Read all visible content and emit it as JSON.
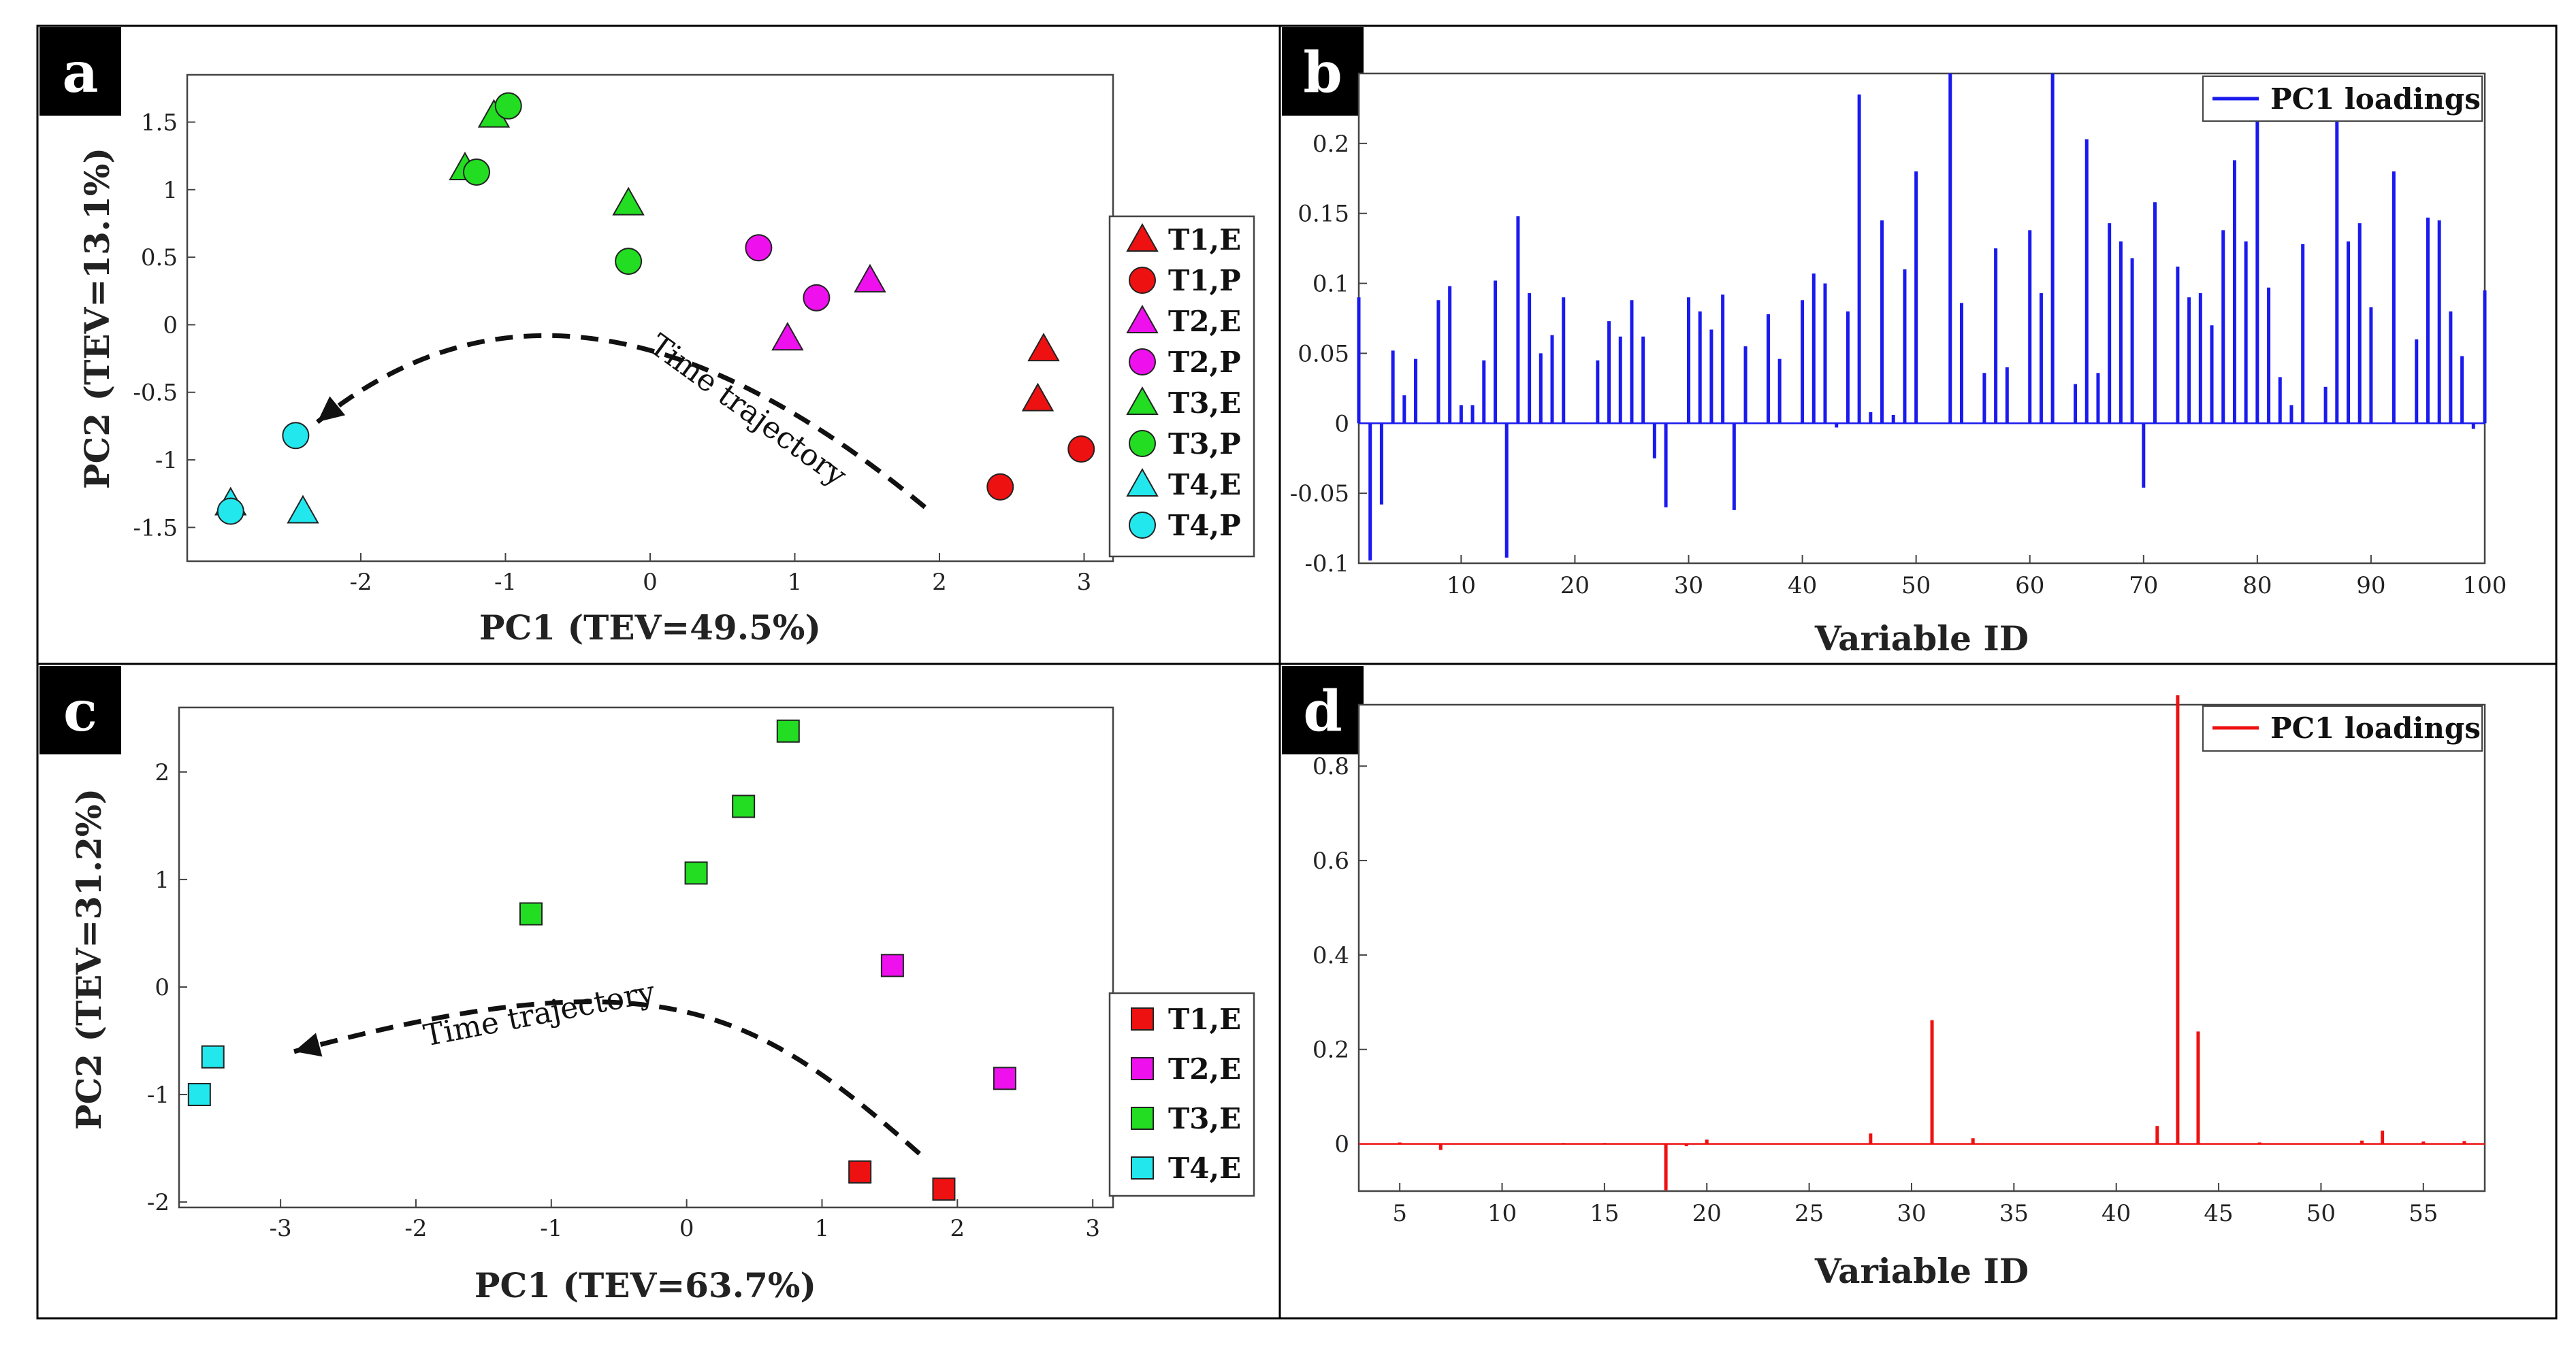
{
  "chart_data": [
    {
      "panel": "a",
      "type": "scatter",
      "xlabel": "PC1 (TEV=49.5%)",
      "ylabel": "PC2 (TEV=13.1%)",
      "xlim": [
        -3.2,
        3.2
      ],
      "ylim": [
        -1.75,
        1.85
      ],
      "xticks": [
        -2,
        -1,
        0,
        1,
        2,
        3
      ],
      "yticks": [
        -1.5,
        -1,
        -0.5,
        0,
        0.5,
        1,
        1.5
      ],
      "ytick_labels": [
        "-1.5",
        "-1",
        "-0.5",
        "0",
        "0.5",
        "1",
        "1.5"
      ],
      "annotation": "Time trajectory",
      "trajectory": [
        [
          1.9,
          -1.35
        ],
        [
          0.6,
          -0.2
        ],
        [
          -0.9,
          0.5
        ],
        [
          -2.3,
          -0.72
        ]
      ],
      "legend_position": "right",
      "series": [
        {
          "name": "T1,E",
          "marker": "triangle",
          "color": "#ee1111",
          "points": [
            [
              2.72,
              -0.18
            ],
            [
              2.68,
              -0.55
            ]
          ]
        },
        {
          "name": "T1,P",
          "marker": "circle",
          "color": "#ee1111",
          "points": [
            [
              2.42,
              -1.2
            ],
            [
              2.98,
              -0.92
            ]
          ]
        },
        {
          "name": "T2,E",
          "marker": "triangle",
          "color": "#ee11ee",
          "points": [
            [
              0.95,
              -0.1
            ],
            [
              1.52,
              0.33
            ]
          ]
        },
        {
          "name": "T2,P",
          "marker": "circle",
          "color": "#ee11ee",
          "points": [
            [
              0.75,
              0.57
            ],
            [
              1.15,
              0.2
            ]
          ]
        },
        {
          "name": "T3,E",
          "marker": "triangle",
          "color": "#22dd22",
          "points": [
            [
              -1.08,
              1.55
            ],
            [
              -1.28,
              1.16
            ],
            [
              -0.15,
              0.9
            ]
          ]
        },
        {
          "name": "T3,P",
          "marker": "circle",
          "color": "#22dd22",
          "points": [
            [
              -0.98,
              1.62
            ],
            [
              -1.2,
              1.13
            ],
            [
              -0.15,
              0.47
            ]
          ]
        },
        {
          "name": "T4,E",
          "marker": "triangle",
          "color": "#22e8ee",
          "points": [
            [
              -2.9,
              -1.32
            ],
            [
              -2.4,
              -1.38
            ]
          ]
        },
        {
          "name": "T4,P",
          "marker": "circle",
          "color": "#22e8ee",
          "points": [
            [
              -2.45,
              -0.82
            ],
            [
              -2.9,
              -1.38
            ]
          ]
        }
      ]
    },
    {
      "panel": "b",
      "type": "bar",
      "xlabel": "Variable ID",
      "ylabel": "",
      "xlim": [
        1,
        100
      ],
      "ylim": [
        -0.1,
        0.25
      ],
      "xticks": [
        10,
        20,
        30,
        40,
        50,
        60,
        70,
        80,
        90,
        100
      ],
      "yticks": [
        -0.1,
        -0.05,
        0,
        0.05,
        0.1,
        0.15,
        0.2
      ],
      "ytick_labels": [
        "-0.1",
        "-0.05",
        "0",
        "0.05",
        "0.1",
        "0.15",
        "0.2"
      ],
      "legend": "PC1 loadings",
      "legend_position": "top-right",
      "color": "#1a1aee",
      "x": [
        1,
        2,
        3,
        4,
        5,
        6,
        7,
        8,
        9,
        10,
        11,
        12,
        13,
        14,
        15,
        16,
        17,
        18,
        19,
        20,
        21,
        22,
        23,
        24,
        25,
        26,
        27,
        28,
        29,
        30,
        31,
        32,
        33,
        34,
        35,
        36,
        37,
        38,
        39,
        40,
        41,
        42,
        43,
        44,
        45,
        46,
        47,
        48,
        49,
        50,
        51,
        52,
        53,
        54,
        55,
        56,
        57,
        58,
        59,
        60,
        61,
        62,
        63,
        64,
        65,
        66,
        67,
        68,
        69,
        70,
        71,
        72,
        73,
        74,
        75,
        76,
        77,
        78,
        79,
        80,
        81,
        82,
        83,
        84,
        85,
        86,
        87,
        88,
        89,
        90,
        91,
        92,
        93,
        94,
        95,
        96,
        97,
        98,
        99,
        100
      ],
      "values": [
        0.09,
        -0.098,
        -0.058,
        0.052,
        0.02,
        0.046,
        0,
        0.088,
        0.098,
        0.013,
        0.013,
        0.045,
        0.102,
        -0.096,
        0.148,
        0.093,
        0.05,
        0.063,
        0.09,
        0,
        0,
        0.045,
        0.073,
        0.062,
        0.088,
        0.062,
        -0.025,
        -0.06,
        0,
        0.09,
        0.08,
        0.067,
        0.092,
        -0.062,
        0.055,
        0,
        0.078,
        0.046,
        0,
        0.088,
        0.107,
        0.1,
        -0.003,
        0.08,
        0.235,
        0.008,
        0.145,
        0.006,
        0.11,
        0.18,
        0,
        0,
        0.25,
        0.086,
        0,
        0.036,
        0.125,
        0.04,
        0,
        0.138,
        0.093,
        0.25,
        0,
        0.028,
        0.203,
        0.036,
        0.143,
        0.13,
        0.118,
        -0.046,
        0.158,
        0,
        0.112,
        0.09,
        0.093,
        0.07,
        0.138,
        0.188,
        0.13,
        0.22,
        0.097,
        0.033,
        0.013,
        0.128,
        0,
        0.026,
        0.235,
        0.13,
        0.143,
        0.083,
        0,
        0.18,
        0,
        0.06,
        0.147,
        0.145,
        0.08,
        0.048,
        -0.004,
        0.095
      ]
    },
    {
      "panel": "c",
      "type": "scatter",
      "xlabel": "PC1 (TEV=63.7%)",
      "ylabel": "PC2 (TEV=31.2%)",
      "xlim": [
        -3.75,
        3.15
      ],
      "ylim": [
        -2.05,
        2.6
      ],
      "xticks": [
        -3,
        -2,
        -1,
        0,
        1,
        2,
        3
      ],
      "yticks": [
        -2,
        -1,
        0,
        1,
        2
      ],
      "annotation": "Time trajectory",
      "trajectory": [
        [
          1.72,
          -1.55
        ],
        [
          0.5,
          -0.2
        ],
        [
          -0.2,
          0.32
        ],
        [
          -2.9,
          -0.6
        ]
      ],
      "legend_position": "bottom-right",
      "series": [
        {
          "name": "T1,E",
          "marker": "square",
          "color": "#ee1111",
          "points": [
            [
              1.28,
              -1.72
            ],
            [
              1.9,
              -1.88
            ]
          ]
        },
        {
          "name": "T2,E",
          "marker": "square",
          "color": "#ee11ee",
          "points": [
            [
              1.52,
              0.2
            ],
            [
              2.35,
              -0.85
            ]
          ]
        },
        {
          "name": "T3,E",
          "marker": "square",
          "color": "#22dd22",
          "points": [
            [
              0.75,
              2.38
            ],
            [
              0.42,
              1.68
            ],
            [
              0.07,
              1.06
            ],
            [
              -1.15,
              0.68
            ]
          ]
        },
        {
          "name": "T4,E",
          "marker": "square",
          "color": "#22e8ee",
          "points": [
            [
              -3.5,
              -0.65
            ],
            [
              -3.6,
              -1.0
            ]
          ]
        }
      ]
    },
    {
      "panel": "d",
      "type": "bar",
      "xlabel": "Variable ID",
      "ylabel": "",
      "xlim": [
        3,
        58
      ],
      "ylim": [
        -0.1,
        0.93
      ],
      "xticks": [
        5,
        10,
        15,
        20,
        25,
        30,
        35,
        40,
        45,
        50,
        55
      ],
      "yticks": [
        0,
        0.2,
        0.4,
        0.6,
        0.8
      ],
      "ytick_labels": [
        "0",
        "0.2",
        "0.4",
        "0.6",
        "0.8"
      ],
      "legend": "PC1 loadings",
      "legend_position": "top-right",
      "color": "#ee1111",
      "x": [
        5,
        7,
        13,
        15,
        18,
        19,
        20,
        28,
        31,
        33,
        42,
        43,
        44,
        47,
        52,
        53,
        55,
        57
      ],
      "values": [
        0.003,
        -0.013,
        0.002,
        0.002,
        -0.098,
        -0.005,
        0.009,
        0.022,
        0.262,
        0.012,
        0.038,
        0.95,
        0.238,
        0.003,
        0.007,
        0.028,
        0.005,
        0.006
      ]
    }
  ]
}
